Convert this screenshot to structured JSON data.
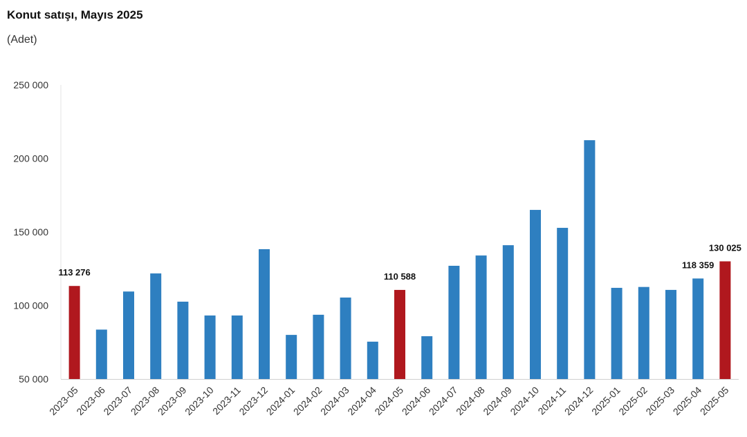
{
  "chart_data": {
    "type": "bar",
    "title": "Konut satışı, Mayıs 2025",
    "subtitle": "(Adet)",
    "categories": [
      "2023-05",
      "2023-06",
      "2023-07",
      "2023-08",
      "2023-09",
      "2023-10",
      "2023-11",
      "2023-12",
      "2024-01",
      "2024-02",
      "2024-03",
      "2024-04",
      "2024-05",
      "2024-06",
      "2024-07",
      "2024-08",
      "2024-09",
      "2024-10",
      "2024-11",
      "2024-12",
      "2025-01",
      "2025-02",
      "2025-03",
      "2025-04",
      "2025-05"
    ],
    "values": [
      113276,
      83600,
      109500,
      121800,
      102600,
      93200,
      93200,
      138300,
      80000,
      93700,
      105400,
      75400,
      110588,
      79100,
      127000,
      134000,
      141000,
      165000,
      152800,
      212400,
      112000,
      112600,
      110600,
      118359,
      130025
    ],
    "value_labels": [
      "113 276",
      null,
      null,
      null,
      null,
      null,
      null,
      null,
      null,
      null,
      null,
      null,
      "110 588",
      null,
      null,
      null,
      null,
      null,
      null,
      null,
      null,
      null,
      null,
      "118 359",
      "130 025"
    ],
    "colors": [
      "#b0181e",
      "#2e7fc0",
      "#2e7fc0",
      "#2e7fc0",
      "#2e7fc0",
      "#2e7fc0",
      "#2e7fc0",
      "#2e7fc0",
      "#2e7fc0",
      "#2e7fc0",
      "#2e7fc0",
      "#2e7fc0",
      "#b0181e",
      "#2e7fc0",
      "#2e7fc0",
      "#2e7fc0",
      "#2e7fc0",
      "#2e7fc0",
      "#2e7fc0",
      "#2e7fc0",
      "#2e7fc0",
      "#2e7fc0",
      "#2e7fc0",
      "#2e7fc0",
      "#b0181e"
    ],
    "ylim": [
      50000,
      250000
    ],
    "yticks": [
      {
        "value": 50000,
        "label": "50 000"
      },
      {
        "value": 100000,
        "label": "100 000"
      },
      {
        "value": 150000,
        "label": "150 000"
      },
      {
        "value": 200000,
        "label": "200 000"
      },
      {
        "value": 250000,
        "label": "250 000"
      }
    ],
    "grid": false
  }
}
